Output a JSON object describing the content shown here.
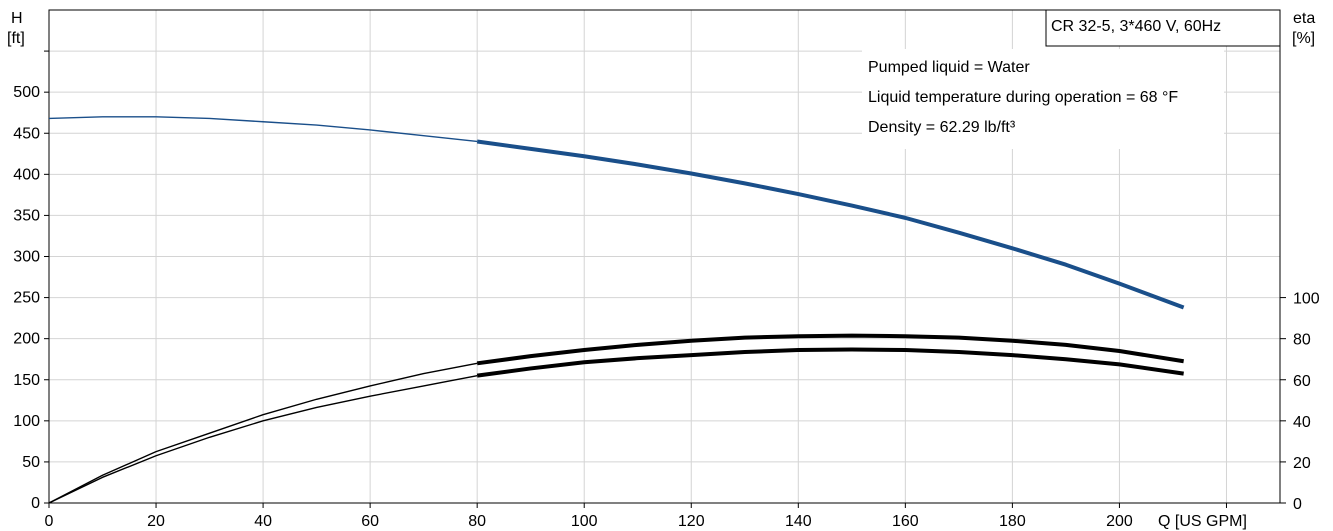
{
  "chart_data": {
    "type": "line",
    "title": "CR 32-5, 3*460 V, 60Hz",
    "annotations": [
      "Pumped liquid = Water",
      "Liquid temperature during operation = 68 °F",
      "Density = 62.29 lb/ft³"
    ],
    "x_axis": {
      "label": "Q [US GPM]",
      "range": [
        0,
        230
      ],
      "ticks": [
        "0",
        "20",
        "40",
        "60",
        "80",
        "100",
        "120",
        "140",
        "160",
        "180",
        "200"
      ]
    },
    "y_axis_left": {
      "label_line1": "H",
      "label_line2": "[ft]",
      "range": [
        0,
        600
      ],
      "ticks": [
        "0",
        "50",
        "100",
        "150",
        "200",
        "250",
        "300",
        "350",
        "400",
        "450",
        "500"
      ]
    },
    "y_axis_right": {
      "label_line1": "eta",
      "label_line2": "[%]",
      "range": [
        0,
        100
      ],
      "ticks": [
        "0",
        "20",
        "40",
        "60",
        "80",
        "100"
      ]
    },
    "grid": true,
    "series": [
      {
        "axis": "left",
        "color": "#1a4f8a",
        "x": [
          0,
          10,
          20,
          30,
          40,
          50,
          60,
          70,
          80,
          90,
          100,
          110,
          120,
          130,
          140,
          150,
          160,
          170,
          180,
          190,
          200,
          212
        ],
        "y": [
          468,
          470,
          470,
          468,
          464,
          460,
          454,
          447,
          440,
          431,
          422,
          412,
          401,
          389,
          376,
          362,
          347,
          329,
          310,
          290,
          267,
          238
        ],
        "emphasis_from_x": 80
      },
      {
        "axis": "right",
        "color": "#000000",
        "x": [
          0,
          10,
          20,
          30,
          40,
          50,
          60,
          70,
          80,
          90,
          100,
          110,
          120,
          130,
          140,
          150,
          160,
          170,
          180,
          190,
          200,
          212
        ],
        "y": [
          0,
          13.5,
          25,
          34,
          43,
          50.5,
          57,
          63,
          68,
          71.5,
          74.5,
          77,
          79,
          80.5,
          81.2,
          81.5,
          81.2,
          80.5,
          79,
          77,
          74,
          69
        ],
        "emphasis_from_x": 80
      },
      {
        "axis": "right",
        "color": "#000000",
        "x": [
          0,
          10,
          20,
          30,
          40,
          50,
          60,
          70,
          80,
          90,
          100,
          110,
          120,
          130,
          140,
          150,
          160,
          170,
          180,
          190,
          200,
          212
        ],
        "y": [
          0,
          12.5,
          23,
          32,
          40,
          46.5,
          52,
          57,
          62,
          65.5,
          68.5,
          70.5,
          72,
          73.5,
          74.5,
          74.7,
          74.5,
          73.5,
          72,
          70,
          67.5,
          63
        ],
        "emphasis_from_x": 80
      }
    ]
  }
}
